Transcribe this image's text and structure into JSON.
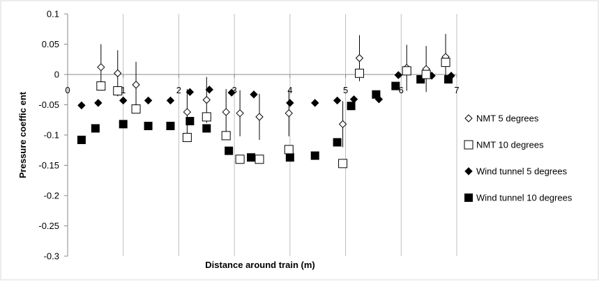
{
  "chart_data": {
    "type": "scatter",
    "title": "",
    "xlabel": "Distance around train (m)",
    "ylabel": "Pressure coeffic ent",
    "xlim": [
      0,
      7
    ],
    "ylim": [
      -0.3,
      0.1
    ],
    "x_ticks": [
      "0",
      "1",
      "2",
      "3",
      "4",
      "5",
      "6",
      "7"
    ],
    "y_ticks": [
      "0.1",
      "0.05",
      "0",
      "-0.05",
      "-0.1",
      "-0.15",
      "-0.2",
      "-0.25",
      "-0.3"
    ],
    "grid": "vertical",
    "legend_position": "right",
    "series": [
      {
        "name": "NMT 5 degrees",
        "marker": "open-diamond",
        "color": "#000000",
        "points": [
          {
            "x": 0.6,
            "y": 0.012,
            "err": 0.038
          },
          {
            "x": 0.9,
            "y": 0.002,
            "err": 0.038
          },
          {
            "x": 1.23,
            "y": -0.017,
            "err": 0.038
          },
          {
            "x": 2.15,
            "y": -0.062,
            "err": 0.038
          },
          {
            "x": 2.5,
            "y": -0.042,
            "err": 0.038
          },
          {
            "x": 2.85,
            "y": -0.062,
            "err": 0.038
          },
          {
            "x": 3.1,
            "y": -0.064,
            "err": 0.038
          },
          {
            "x": 3.45,
            "y": -0.07,
            "err": 0.038
          },
          {
            "x": 3.98,
            "y": -0.064,
            "err": 0.038
          },
          {
            "x": 4.95,
            "y": -0.082,
            "err": 0.038
          },
          {
            "x": 5.25,
            "y": 0.027,
            "err": 0.038
          },
          {
            "x": 6.1,
            "y": 0.011,
            "err": 0.038
          },
          {
            "x": 6.45,
            "y": 0.009,
            "err": 0.038
          },
          {
            "x": 6.8,
            "y": 0.029,
            "err": 0.038
          }
        ]
      },
      {
        "name": "NMT 10 degrees",
        "marker": "open-square",
        "color": "#000000",
        "points": [
          {
            "x": 0.6,
            "y": -0.019
          },
          {
            "x": 0.9,
            "y": -0.027
          },
          {
            "x": 1.23,
            "y": -0.057
          },
          {
            "x": 2.15,
            "y": -0.104
          },
          {
            "x": 2.5,
            "y": -0.07
          },
          {
            "x": 2.85,
            "y": -0.101
          },
          {
            "x": 3.1,
            "y": -0.14
          },
          {
            "x": 3.45,
            "y": -0.14
          },
          {
            "x": 3.98,
            "y": -0.124
          },
          {
            "x": 4.95,
            "y": -0.147
          },
          {
            "x": 5.25,
            "y": 0.002
          },
          {
            "x": 6.1,
            "y": 0.006
          },
          {
            "x": 6.45,
            "y": 0.0
          },
          {
            "x": 6.8,
            "y": 0.02
          }
        ]
      },
      {
        "name": "Wind tunnel 5 degrees",
        "marker": "filled-diamond",
        "color": "#000000",
        "points": [
          {
            "x": 0.25,
            "y": -0.051
          },
          {
            "x": 0.55,
            "y": -0.047
          },
          {
            "x": 1.0,
            "y": -0.043
          },
          {
            "x": 1.45,
            "y": -0.043
          },
          {
            "x": 1.85,
            "y": -0.043
          },
          {
            "x": 2.2,
            "y": -0.029
          },
          {
            "x": 2.55,
            "y": -0.025
          },
          {
            "x": 2.95,
            "y": -0.03
          },
          {
            "x": 3.35,
            "y": -0.033
          },
          {
            "x": 4.0,
            "y": -0.047
          },
          {
            "x": 4.45,
            "y": -0.047
          },
          {
            "x": 4.85,
            "y": -0.043
          },
          {
            "x": 5.15,
            "y": -0.041
          },
          {
            "x": 5.6,
            "y": -0.041
          },
          {
            "x": 5.95,
            "y": -0.001
          },
          {
            "x": 6.55,
            "y": -0.002
          },
          {
            "x": 6.9,
            "y": -0.002
          }
        ]
      },
      {
        "name": "Wind tunnel 10 degrees",
        "marker": "filled-square",
        "color": "#000000",
        "points": [
          {
            "x": 0.25,
            "y": -0.108
          },
          {
            "x": 0.5,
            "y": -0.089
          },
          {
            "x": 1.0,
            "y": -0.082
          },
          {
            "x": 1.45,
            "y": -0.085
          },
          {
            "x": 1.85,
            "y": -0.085
          },
          {
            "x": 2.2,
            "y": -0.077
          },
          {
            "x": 2.5,
            "y": -0.089
          },
          {
            "x": 2.9,
            "y": -0.126
          },
          {
            "x": 3.3,
            "y": -0.137
          },
          {
            "x": 4.0,
            "y": -0.137
          },
          {
            "x": 4.45,
            "y": -0.134
          },
          {
            "x": 4.85,
            "y": -0.112
          },
          {
            "x": 5.1,
            "y": -0.052
          },
          {
            "x": 5.55,
            "y": -0.033
          },
          {
            "x": 5.9,
            "y": -0.019
          },
          {
            "x": 6.35,
            "y": -0.008
          },
          {
            "x": 6.85,
            "y": -0.008
          }
        ]
      }
    ]
  }
}
